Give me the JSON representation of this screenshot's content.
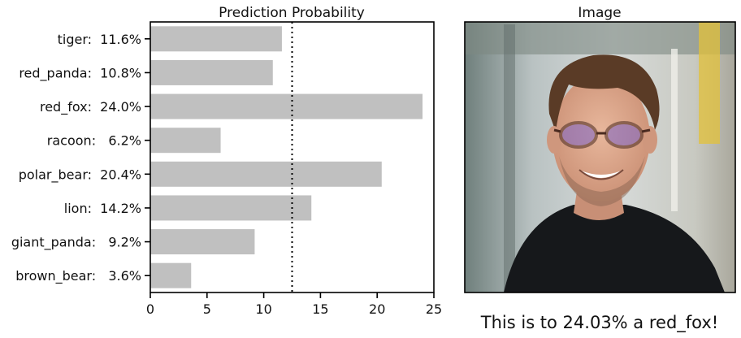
{
  "chart_data": {
    "type": "bar",
    "orientation": "horizontal",
    "title": "Prediction Probability",
    "categories": [
      "tiger",
      "red_panda",
      "red_fox",
      "racoon",
      "polar_bear",
      "lion",
      "giant_panda",
      "brown_bear"
    ],
    "values": [
      11.6,
      10.8,
      24.0,
      6.2,
      20.4,
      14.2,
      9.2,
      3.6
    ],
    "category_labels": [
      "tiger:  11.6%",
      "red_panda:  10.8%",
      "red_fox:  24.0%",
      "racoon:   6.2%",
      "polar_bear:  20.4%",
      "lion:  14.2%",
      "giant_panda:   9.2%",
      "brown_bear:   3.6%"
    ],
    "xlim": [
      0,
      25
    ],
    "xticks": [
      0,
      5,
      10,
      15,
      20,
      25
    ],
    "reference_line": 12.5,
    "bar_color": "#c0c0c0",
    "grid": false
  },
  "image_panel": {
    "title": "Image",
    "caption": "This is to 24.03% a red_fox!"
  }
}
